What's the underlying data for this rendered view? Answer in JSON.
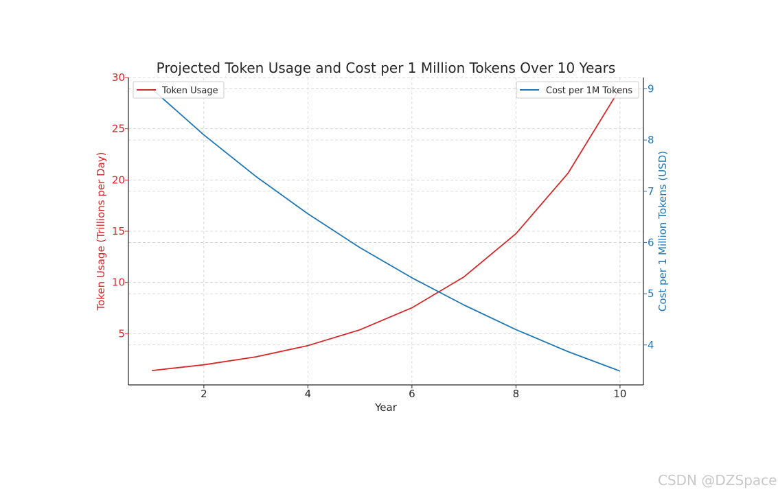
{
  "chart_data": {
    "type": "line",
    "title": "Projected Token Usage and Cost per 1 Million Tokens Over 10 Years",
    "xlabel": "Year",
    "x": [
      1,
      2,
      3,
      4,
      5,
      6,
      7,
      8,
      9,
      10
    ],
    "xticks": [
      2,
      4,
      6,
      8,
      10
    ],
    "xlim": [
      0.55,
      10.45
    ],
    "grid": true,
    "left_axis": {
      "label": "Token Usage (Trillions per Day)",
      "color": "#d62728",
      "ylim": [
        0,
        30
      ],
      "ticks": [
        5,
        10,
        15,
        20,
        25,
        30
      ]
    },
    "right_axis": {
      "label": "Cost per 1 Million Tokens (USD)",
      "color": "#1f77b4",
      "ylim": [
        3.22,
        9.22
      ],
      "ticks": [
        4,
        5,
        6,
        7,
        8,
        9
      ]
    },
    "series": [
      {
        "name": "Token Usage",
        "axis": "left",
        "color": "#d62728",
        "legend_position": "upper left",
        "values": [
          1.4,
          1.96,
          2.74,
          3.84,
          5.38,
          7.53,
          10.54,
          14.76,
          20.66,
          28.93
        ]
      },
      {
        "name": "Cost per 1M Tokens",
        "axis": "right",
        "color": "#1f77b4",
        "legend_position": "upper right",
        "values": [
          9.0,
          8.1,
          7.29,
          6.56,
          5.9,
          5.31,
          4.78,
          4.3,
          3.87,
          3.49
        ]
      }
    ]
  },
  "watermark": "CSDN @DZSpace"
}
